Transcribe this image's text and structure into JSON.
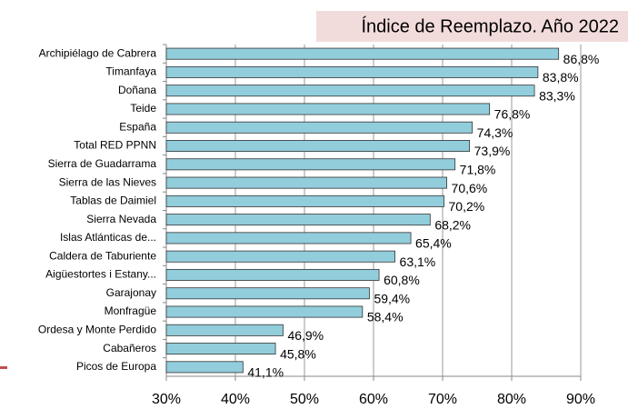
{
  "chart_data": {
    "type": "barh",
    "title": "Índice de Reemplazo. Año 2022",
    "categories": [
      "Archipiélago de Cabrera",
      "Timanfaya",
      "Doñana",
      "Teide",
      "España",
      "Total RED PPNN",
      "Sierra de Guadarrama",
      "Sierra de las Nieves",
      "Tablas de Daimiel",
      "Sierra Nevada",
      "Islas Atlánticas de...",
      "Caldera de Taburiente",
      "Aigüestortes i Estany...",
      "Garajonay",
      "Monfragüe",
      "Ordesa y Monte Perdido",
      "Cabañeros",
      "Picos de Europa"
    ],
    "values": [
      86.8,
      83.8,
      83.3,
      76.8,
      74.3,
      73.9,
      71.8,
      70.6,
      70.2,
      68.2,
      65.4,
      63.1,
      60.8,
      59.4,
      58.4,
      46.9,
      45.8,
      41.1
    ],
    "value_labels": [
      "86,8%",
      "83,8%",
      "83,3%",
      "76,8%",
      "74,3%",
      "73,9%",
      "71,8%",
      "70,6%",
      "70,2%",
      "68,2%",
      "65,4%",
      "63,1%",
      "60,8%",
      "59,4%",
      "58,4%",
      "46,9%",
      "45,8%",
      "41,1%"
    ],
    "color": "#92cddc",
    "xlim": [
      30,
      90
    ],
    "xticks": [
      {
        "value": 30,
        "label": "30%"
      },
      {
        "value": 40,
        "label": "40%"
      },
      {
        "value": 50,
        "label": "50%"
      },
      {
        "value": 60,
        "label": "60%"
      },
      {
        "value": 70,
        "label": "70%"
      },
      {
        "value": 80,
        "label": "80%"
      },
      {
        "value": 90,
        "label": "90%"
      }
    ],
    "grid": true
  }
}
